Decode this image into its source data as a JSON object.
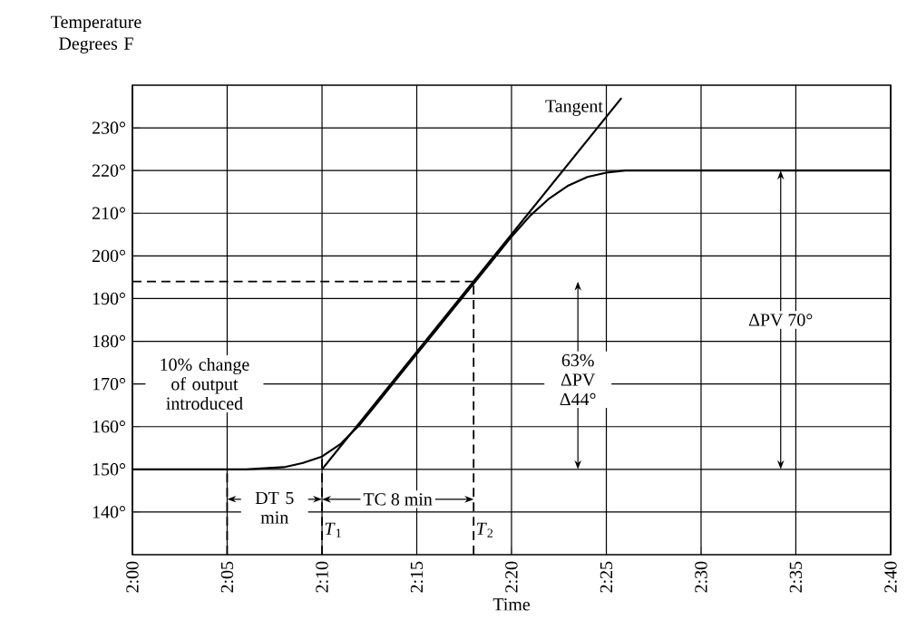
{
  "chart_data": {
    "type": "line",
    "xlabel": "Time",
    "ylabel": "Temperature Degrees F",
    "xlim": [
      2,
      2.6667
    ],
    "ylim": [
      130,
      240
    ],
    "xticks": [
      {
        "value": 2,
        "label": "2:00"
      },
      {
        "value": 2.0833,
        "label": "2:05"
      },
      {
        "value": 2.1667,
        "label": "2:10"
      },
      {
        "value": 2.25,
        "label": "2:15"
      },
      {
        "value": 2.3333,
        "label": "2:20"
      },
      {
        "value": 2.4167,
        "label": "2:25"
      },
      {
        "value": 2.5,
        "label": "2:30"
      },
      {
        "value": 2.5833,
        "label": "2:35"
      },
      {
        "value": 2.6667,
        "label": "2:40"
      }
    ],
    "yticks": [
      {
        "value": 140,
        "label": "140°"
      },
      {
        "value": 150,
        "label": "150°"
      },
      {
        "value": 160,
        "label": "160°"
      },
      {
        "value": 170,
        "label": "170°"
      },
      {
        "value": 180,
        "label": "180°"
      },
      {
        "value": 190,
        "label": "190°"
      },
      {
        "value": 200,
        "label": "200°"
      },
      {
        "value": 210,
        "label": "210°"
      },
      {
        "value": 220,
        "label": "220°"
      },
      {
        "value": 230,
        "label": "230°"
      }
    ],
    "grid": true,
    "series": [
      {
        "color": "#000000",
        "x": [
          2,
          2.1,
          2.1333,
          2.15,
          2.1667,
          2.1833,
          2.2,
          2.2167,
          2.2333,
          2.25,
          2.2667,
          2.2833,
          2.3,
          2.3167,
          2.3333,
          2.35,
          2.3667,
          2.3833,
          2.4,
          2.4167,
          2.4333,
          2.6667
        ],
        "values": [
          150,
          150,
          150.5,
          151.5,
          153,
          156,
          160.5,
          166,
          171.5,
          177,
          182.5,
          188,
          193.5,
          199,
          204.5,
          209.5,
          213.5,
          216.5,
          218.5,
          219.5,
          220,
          220
        ]
      },
      {
        "name": "Tangent",
        "color": "#000000",
        "x": [
          2.1667,
          2.43
        ],
        "values": [
          150,
          237
        ]
      }
    ],
    "ref_lines": [
      {
        "axis": "x",
        "value": 2.0833,
        "line_style": "dashed"
      },
      {
        "axis": "x",
        "value": 2.1667,
        "label": "*T*$_{1}$",
        "line_style": "dashed"
      },
      {
        "axis": "x",
        "value": 2.3,
        "label": "*T*$_{2}$",
        "line_style": "dashed"
      },
      {
        "axis": "y",
        "value": 194,
        "line_style": "dashed"
      }
    ],
    "annotations": [
      "10% change of output introduced",
      {
        "text": "DT 5 min",
        "x": 2.125,
        "y": 141
      },
      "TC 8 min",
      {
        "text": "63% ΔPV Δ44°",
        "x": 2.3917,
        "y": 171
      },
      {
        "text": "ΔPV 70°",
        "x": 2.57,
        "y": 220
      }
    ]
  }
}
